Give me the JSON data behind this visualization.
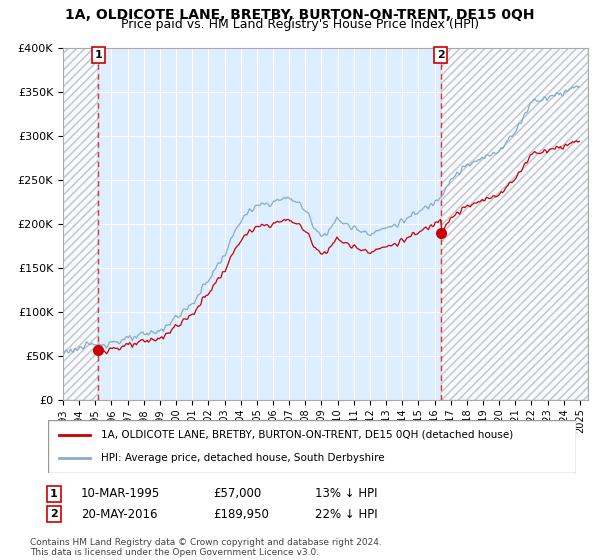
{
  "title": "1A, OLDICOTE LANE, BRETBY, BURTON-ON-TRENT, DE15 0QH",
  "subtitle": "Price paid vs. HM Land Registry's House Price Index (HPI)",
  "ylim": [
    0,
    400000
  ],
  "yticks": [
    0,
    50000,
    100000,
    150000,
    200000,
    250000,
    300000,
    350000,
    400000
  ],
  "ytick_labels": [
    "£0",
    "£50K",
    "£100K",
    "£150K",
    "£200K",
    "£250K",
    "£300K",
    "£350K",
    "£400K"
  ],
  "sale1_year": 1995.19,
  "sale1_price": 57000,
  "sale2_year": 2016.38,
  "sale2_price": 189950,
  "legend_line1": "1A, OLDICOTE LANE, BRETBY, BURTON-ON-TRENT, DE15 0QH (detached house)",
  "legend_line2": "HPI: Average price, detached house, South Derbyshire",
  "ann1_box": "1",
  "ann1_date": "10-MAR-1995",
  "ann1_price": "£57,000",
  "ann1_hpi": "13% ↓ HPI",
  "ann2_box": "2",
  "ann2_date": "20-MAY-2016",
  "ann2_price": "£189,950",
  "ann2_hpi": "22% ↓ HPI",
  "footer": "Contains HM Land Registry data © Crown copyright and database right 2024.\nThis data is licensed under the Open Government Licence v3.0.",
  "line_color_red": "#cc0000",
  "line_color_blue": "#88aacc",
  "background_color": "#ddeeff",
  "grid_color": "#ffffff",
  "title_fontsize": 10,
  "subtitle_fontsize": 9
}
